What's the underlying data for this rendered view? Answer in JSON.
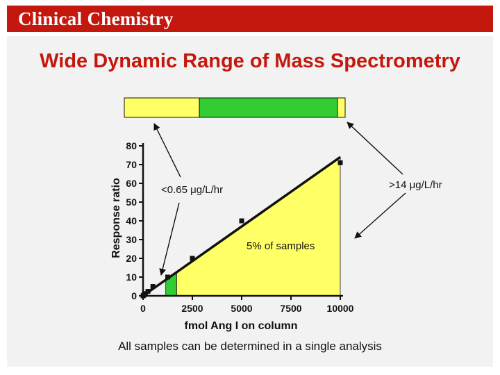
{
  "header": {
    "title": "Clinical Chemistry"
  },
  "slide": {
    "title": "Wide Dynamic Range of Mass Spectrometry",
    "footer": "All samples can be determined in a single analysis"
  },
  "colors": {
    "brand_red": "#c4180e",
    "yellow": "#ffff66",
    "green": "#33cc33",
    "panel": "#f2f2f2"
  },
  "range_bar": {
    "segments": [
      {
        "name": "low",
        "color": "yellow",
        "from": 0.0,
        "to": 0.34
      },
      {
        "name": "mid",
        "color": "green",
        "from": 0.34,
        "to": 0.965
      },
      {
        "name": "high",
        "color": "yellow",
        "from": 0.965,
        "to": 1.0
      }
    ]
  },
  "annotations": {
    "low_range": "<0.65 μg/L/hr",
    "high_range": ">14 μg/L/hr",
    "percent_samples": "5% of samples"
  },
  "chart_data": {
    "type": "scatter",
    "title": "",
    "xlabel": "fmol Ang I on column",
    "ylabel": "Response ratio",
    "xlim": [
      0,
      10000
    ],
    "ylim": [
      0,
      80
    ],
    "xticks": [
      0,
      2500,
      5000,
      7500,
      10000
    ],
    "yticks": [
      0,
      10,
      20,
      30,
      40,
      50,
      60,
      70,
      80
    ],
    "xtick_labels": [
      "0",
      "2500",
      "5000",
      "7500",
      "10000"
    ],
    "ytick_labels": [
      "0",
      "10",
      "20",
      "30",
      "40",
      "50",
      "60",
      "70",
      "80"
    ],
    "points": [
      {
        "x": 0,
        "y": 0
      },
      {
        "x": 30,
        "y": 0.3
      },
      {
        "x": 60,
        "y": 0.6
      },
      {
        "x": 120,
        "y": 1.2
      },
      {
        "x": 250,
        "y": 2.4
      },
      {
        "x": 500,
        "y": 5
      },
      {
        "x": 1250,
        "y": 10
      },
      {
        "x": 2500,
        "y": 20
      },
      {
        "x": 5000,
        "y": 40
      },
      {
        "x": 10000,
        "y": 71
      }
    ],
    "fit_line": {
      "x": [
        0,
        10000
      ],
      "y": [
        0,
        74
      ]
    },
    "shaded_regions": [
      {
        "name": "mid-range",
        "color": "yellow",
        "x_from": 1700,
        "x_to": 10000
      },
      {
        "name": "low-range",
        "color": "green",
        "x_from": 1150,
        "x_to": 1700
      }
    ]
  }
}
